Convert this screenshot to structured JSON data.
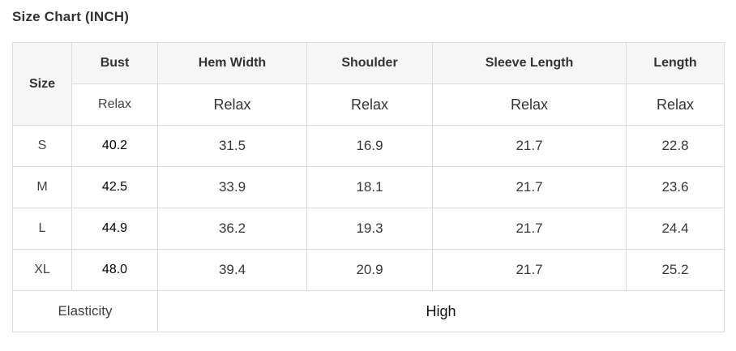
{
  "title": "Size Chart (INCH)",
  "unit": "INCH",
  "table": {
    "corner_header": "Size",
    "columns": [
      {
        "label": "Bust",
        "fit": "Relax"
      },
      {
        "label": "Hem Width",
        "fit": "Relax"
      },
      {
        "label": "Shoulder",
        "fit": "Relax"
      },
      {
        "label": "Sleeve Length",
        "fit": "Relax"
      },
      {
        "label": "Length",
        "fit": "Relax"
      }
    ],
    "rows": [
      {
        "size": "S",
        "values": [
          "40.2",
          "31.5",
          "16.9",
          "21.7",
          "22.8"
        ]
      },
      {
        "size": "M",
        "values": [
          "42.5",
          "33.9",
          "18.1",
          "21.7",
          "23.6"
        ]
      },
      {
        "size": "L",
        "values": [
          "44.9",
          "36.2",
          "19.3",
          "21.7",
          "24.4"
        ]
      },
      {
        "size": "XL",
        "values": [
          "48.0",
          "39.4",
          "20.9",
          "21.7",
          "25.2"
        ]
      }
    ],
    "footer": {
      "label": "Elasticity",
      "value": "High"
    }
  },
  "chart_data": {
    "type": "table",
    "title": "Size Chart (INCH)",
    "columns": [
      "Size",
      "Bust",
      "Hem Width",
      "Shoulder",
      "Sleeve Length",
      "Length"
    ],
    "fit_row": [
      "",
      "Relax",
      "Relax",
      "Relax",
      "Relax",
      "Relax"
    ],
    "rows": [
      [
        "S",
        40.2,
        31.5,
        16.9,
        21.7,
        22.8
      ],
      [
        "M",
        42.5,
        33.9,
        18.1,
        21.7,
        23.6
      ],
      [
        "L",
        44.9,
        36.2,
        19.3,
        21.7,
        24.4
      ],
      [
        "XL",
        48.0,
        39.4,
        20.9,
        21.7,
        25.2
      ]
    ],
    "footer_row": [
      "Elasticity",
      "High"
    ]
  },
  "colors": {
    "header_bg": "#f6f6f6",
    "border": "#dcdcdc",
    "header_text": "#333333",
    "body_text": "#383838",
    "emphasis_text": "#000000",
    "page_bg": "#ffffff"
  }
}
